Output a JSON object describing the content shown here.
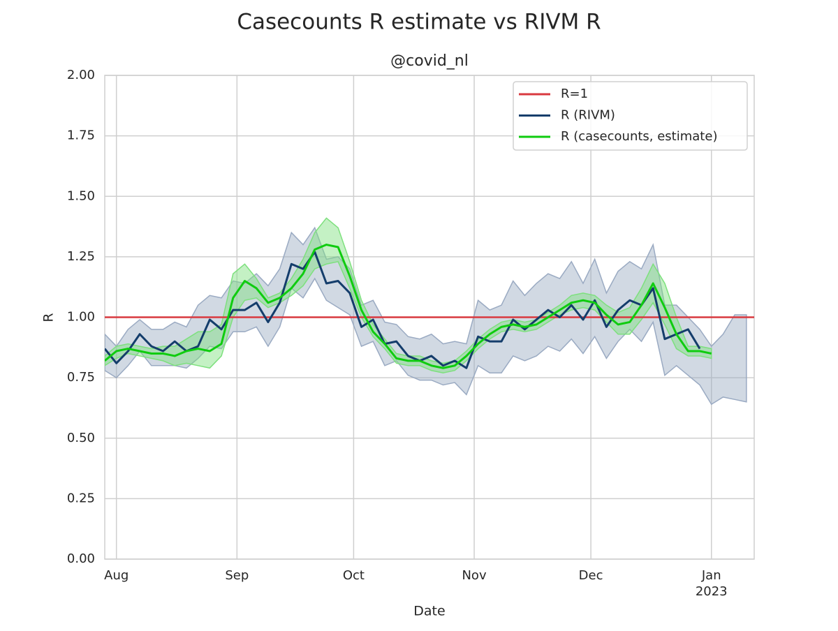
{
  "chart_data": {
    "type": "line",
    "title": "Casecounts R estimate vs RIVM R",
    "subtitle": "@covid_nl",
    "xlabel": "Date",
    "ylabel": "R",
    "xlim": [
      -3,
      164
    ],
    "xticks": [
      {
        "value": 0,
        "label": [
          "Aug"
        ]
      },
      {
        "value": 31,
        "label": [
          "Sep"
        ]
      },
      {
        "value": 61,
        "label": [
          "Oct"
        ]
      },
      {
        "value": 92,
        "label": [
          "Nov"
        ]
      },
      {
        "value": 122,
        "label": [
          "Dec"
        ]
      },
      {
        "value": 153,
        "label": [
          "Jan",
          "2023"
        ]
      }
    ],
    "ylim": [
      0,
      2
    ],
    "yticks": [
      {
        "value": 0,
        "label": "0.00"
      },
      {
        "value": 0.25,
        "label": "0.25"
      },
      {
        "value": 0.5,
        "label": "0.50"
      },
      {
        "value": 0.75,
        "label": "0.75"
      },
      {
        "value": 1,
        "label": "1.00"
      },
      {
        "value": 1.25,
        "label": "1.25"
      },
      {
        "value": 1.5,
        "label": "1.50"
      },
      {
        "value": 1.75,
        "label": "1.75"
      },
      {
        "value": 2,
        "label": "2.00"
      }
    ],
    "grid": true,
    "legend": "upper right",
    "x": [
      -3,
      0,
      3,
      6,
      9,
      12,
      15,
      18,
      21,
      24,
      27,
      30,
      33,
      36,
      39,
      42,
      45,
      48,
      51,
      54,
      57,
      60,
      63,
      66,
      69,
      72,
      75,
      78,
      81,
      84,
      87,
      90,
      93,
      96,
      99,
      102,
      105,
      108,
      111,
      114,
      117,
      120,
      123,
      126,
      129,
      132,
      135,
      138,
      141,
      144,
      147,
      150,
      153,
      156,
      159,
      162
    ],
    "series": [
      {
        "name": "R=1",
        "kind": "hline",
        "value": 1,
        "color": "#d9393f"
      },
      {
        "name": "R (RIVM)",
        "color": "#143d6b",
        "band_color": "#9aaac2",
        "values": [
          0.87,
          0.81,
          0.86,
          0.93,
          0.88,
          0.86,
          0.9,
          0.86,
          0.88,
          0.99,
          0.95,
          1.03,
          1.03,
          1.06,
          0.98,
          1.06,
          1.22,
          1.2,
          1.27,
          1.14,
          1.15,
          1.1,
          0.96,
          0.99,
          0.89,
          0.9,
          0.84,
          0.82,
          0.84,
          0.8,
          0.82,
          0.79,
          0.92,
          0.9,
          0.9,
          0.99,
          0.95,
          0.99,
          1.03,
          1.0,
          1.05,
          0.99,
          1.07,
          0.96,
          1.03,
          1.07,
          1.05,
          1.12,
          0.91,
          0.93,
          0.95,
          0.87,
          null,
          null,
          null,
          null
        ],
        "lower": [
          0.78,
          0.75,
          0.8,
          0.86,
          0.8,
          0.8,
          0.8,
          0.79,
          0.83,
          0.88,
          0.87,
          0.94,
          0.94,
          0.96,
          0.88,
          0.96,
          1.12,
          1.08,
          1.16,
          1.07,
          1.04,
          1.01,
          0.88,
          0.9,
          0.8,
          0.82,
          0.76,
          0.74,
          0.74,
          0.72,
          0.73,
          0.68,
          0.8,
          0.77,
          0.77,
          0.84,
          0.82,
          0.84,
          0.88,
          0.86,
          0.91,
          0.85,
          0.92,
          0.83,
          0.9,
          0.95,
          0.9,
          0.98,
          0.76,
          0.8,
          0.76,
          0.72,
          0.64,
          0.67,
          0.66,
          0.65
        ],
        "upper": [
          0.93,
          0.88,
          0.95,
          0.99,
          0.95,
          0.95,
          0.98,
          0.96,
          1.05,
          1.09,
          1.08,
          1.15,
          1.14,
          1.18,
          1.13,
          1.2,
          1.35,
          1.3,
          1.37,
          1.24,
          1.25,
          1.2,
          1.05,
          1.07,
          0.98,
          0.97,
          0.92,
          0.91,
          0.93,
          0.89,
          0.9,
          0.89,
          1.07,
          1.03,
          1.05,
          1.15,
          1.09,
          1.14,
          1.18,
          1.16,
          1.23,
          1.14,
          1.24,
          1.1,
          1.19,
          1.23,
          1.2,
          1.3,
          1.05,
          1.05,
          1.0,
          0.95,
          0.88,
          0.93,
          1.01,
          1.01
        ]
      },
      {
        "name": "R (casecounts, estimate)",
        "color": "#0fcc0f",
        "band_color": "#7de07d",
        "values": [
          0.82,
          0.86,
          0.87,
          0.86,
          0.85,
          0.85,
          0.84,
          0.86,
          0.87,
          0.86,
          0.89,
          1.08,
          1.15,
          1.12,
          1.06,
          1.08,
          1.12,
          1.18,
          1.28,
          1.3,
          1.29,
          1.17,
          1.03,
          0.94,
          0.89,
          0.83,
          0.82,
          0.82,
          0.8,
          0.79,
          0.8,
          0.84,
          0.89,
          0.93,
          0.96,
          0.97,
          0.96,
          0.97,
          1.0,
          1.03,
          1.06,
          1.07,
          1.06,
          1.01,
          0.97,
          0.98,
          1.05,
          1.14,
          1.04,
          0.93,
          0.86,
          0.86,
          0.85,
          null,
          null,
          null
        ],
        "lower": [
          0.8,
          0.83,
          0.85,
          0.84,
          0.83,
          0.82,
          0.8,
          0.81,
          0.8,
          0.79,
          0.84,
          1.0,
          1.07,
          1.08,
          1.04,
          1.06,
          1.09,
          1.13,
          1.2,
          1.22,
          1.23,
          1.12,
          1.0,
          0.92,
          0.87,
          0.81,
          0.8,
          0.8,
          0.78,
          0.77,
          0.78,
          0.82,
          0.87,
          0.91,
          0.94,
          0.95,
          0.94,
          0.95,
          0.98,
          1.01,
          1.03,
          1.04,
          1.03,
          0.98,
          0.93,
          0.93,
          0.99,
          1.06,
          0.97,
          0.87,
          0.84,
          0.84,
          0.83,
          null,
          null,
          null
        ],
        "upper": [
          0.84,
          0.88,
          0.89,
          0.88,
          0.87,
          0.88,
          0.88,
          0.91,
          0.94,
          0.94,
          0.97,
          1.18,
          1.22,
          1.16,
          1.08,
          1.1,
          1.16,
          1.24,
          1.35,
          1.41,
          1.37,
          1.23,
          1.07,
          0.97,
          0.91,
          0.85,
          0.84,
          0.84,
          0.82,
          0.81,
          0.82,
          0.86,
          0.91,
          0.95,
          0.98,
          0.99,
          0.98,
          0.99,
          1.02,
          1.05,
          1.09,
          1.1,
          1.09,
          1.05,
          1.02,
          1.04,
          1.12,
          1.22,
          1.14,
          1.0,
          0.88,
          0.88,
          0.87,
          null,
          null,
          null
        ]
      }
    ]
  }
}
